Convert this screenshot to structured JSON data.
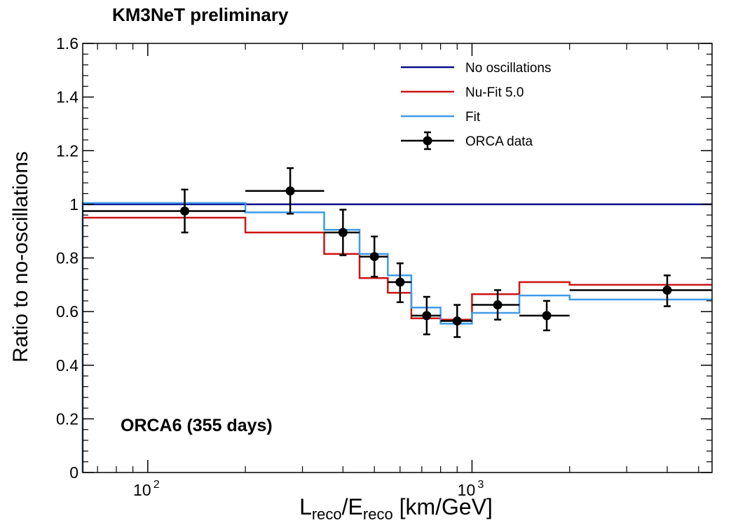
{
  "header": {
    "title": "KM3NeT preliminary"
  },
  "annotation": "ORCA6 (355 days)",
  "axes": {
    "ylabel": "Ratio to no-oscillations",
    "xlabel_parts": {
      "l": "L",
      "l_sub": "reco",
      "sep": "/E",
      "e_sub": "reco",
      "unit": " [km/GeV]"
    }
  },
  "chart_data": {
    "type": "line",
    "title": "KM3NeT preliminary",
    "xlabel": "Lreco/Ereco [km/GeV]",
    "ylabel": "Ratio to no-oscillations",
    "xscale": "log",
    "xlim": [
      63,
      5500
    ],
    "ylim": [
      0,
      1.6
    ],
    "y_ticks": [
      0,
      0.2,
      0.4,
      0.6,
      0.8,
      1,
      1.2,
      1.4,
      1.6
    ],
    "y_tick_labels": [
      "0",
      "0.2",
      "0.4",
      "0.6",
      "0.8",
      "1",
      "1.2",
      "1.4",
      "1.6"
    ],
    "x_major_ticks": [
      100,
      1000
    ],
    "x_major_tick_labels": [
      {
        "base": "10",
        "exp": "2"
      },
      {
        "base": "10",
        "exp": "3"
      }
    ],
    "x_minor_ticks": [
      70,
      80,
      90,
      200,
      300,
      400,
      500,
      600,
      700,
      800,
      900,
      2000,
      3000,
      4000,
      5000
    ],
    "legend_position": "top-right",
    "grid": false,
    "series": [
      {
        "name": "No oscillations",
        "kind": "line",
        "color": "#0b0b8c",
        "bin_edges": [
          63,
          5500
        ],
        "values": [
          1.0
        ]
      },
      {
        "name": "Nu-Fit 5.0",
        "kind": "histogram",
        "color": "#cc1414",
        "bin_edges": [
          63,
          200,
          350,
          450,
          550,
          650,
          800,
          1000,
          1400,
          2000,
          5500
        ],
        "values": [
          0.95,
          0.895,
          0.815,
          0.725,
          0.67,
          0.575,
          0.57,
          0.665,
          0.71,
          0.7
        ]
      },
      {
        "name": "Fit",
        "kind": "histogram",
        "color": "#3d9be9",
        "bin_edges": [
          63,
          200,
          350,
          450,
          550,
          650,
          800,
          1000,
          1400,
          2000,
          5500
        ],
        "values": [
          1.005,
          0.97,
          0.905,
          0.815,
          0.735,
          0.615,
          0.555,
          0.595,
          0.66,
          0.645
        ]
      },
      {
        "name": "ORCA data",
        "kind": "points_with_errors",
        "color": "#000000",
        "points": [
          {
            "x": 130,
            "y": 0.975,
            "xlo": 63,
            "xhi": 200,
            "ylo": 0.895,
            "yhi": 1.055
          },
          {
            "x": 275,
            "y": 1.05,
            "xlo": 200,
            "xhi": 350,
            "ylo": 0.965,
            "yhi": 1.135
          },
          {
            "x": 400,
            "y": 0.895,
            "xlo": 350,
            "xhi": 450,
            "ylo": 0.81,
            "yhi": 0.98
          },
          {
            "x": 500,
            "y": 0.805,
            "xlo": 450,
            "xhi": 550,
            "ylo": 0.73,
            "yhi": 0.88
          },
          {
            "x": 600,
            "y": 0.71,
            "xlo": 550,
            "xhi": 650,
            "ylo": 0.635,
            "yhi": 0.78
          },
          {
            "x": 725,
            "y": 0.585,
            "xlo": 650,
            "xhi": 800,
            "ylo": 0.515,
            "yhi": 0.655
          },
          {
            "x": 900,
            "y": 0.565,
            "xlo": 800,
            "xhi": 1000,
            "ylo": 0.505,
            "yhi": 0.625
          },
          {
            "x": 1200,
            "y": 0.625,
            "xlo": 1000,
            "xhi": 1400,
            "ylo": 0.57,
            "yhi": 0.68
          },
          {
            "x": 1700,
            "y": 0.585,
            "xlo": 1400,
            "xhi": 2000,
            "ylo": 0.53,
            "yhi": 0.64
          },
          {
            "x": 4000,
            "y": 0.68,
            "xlo": 2000,
            "xhi": 5500,
            "ylo": 0.62,
            "yhi": 0.735
          }
        ]
      }
    ]
  }
}
